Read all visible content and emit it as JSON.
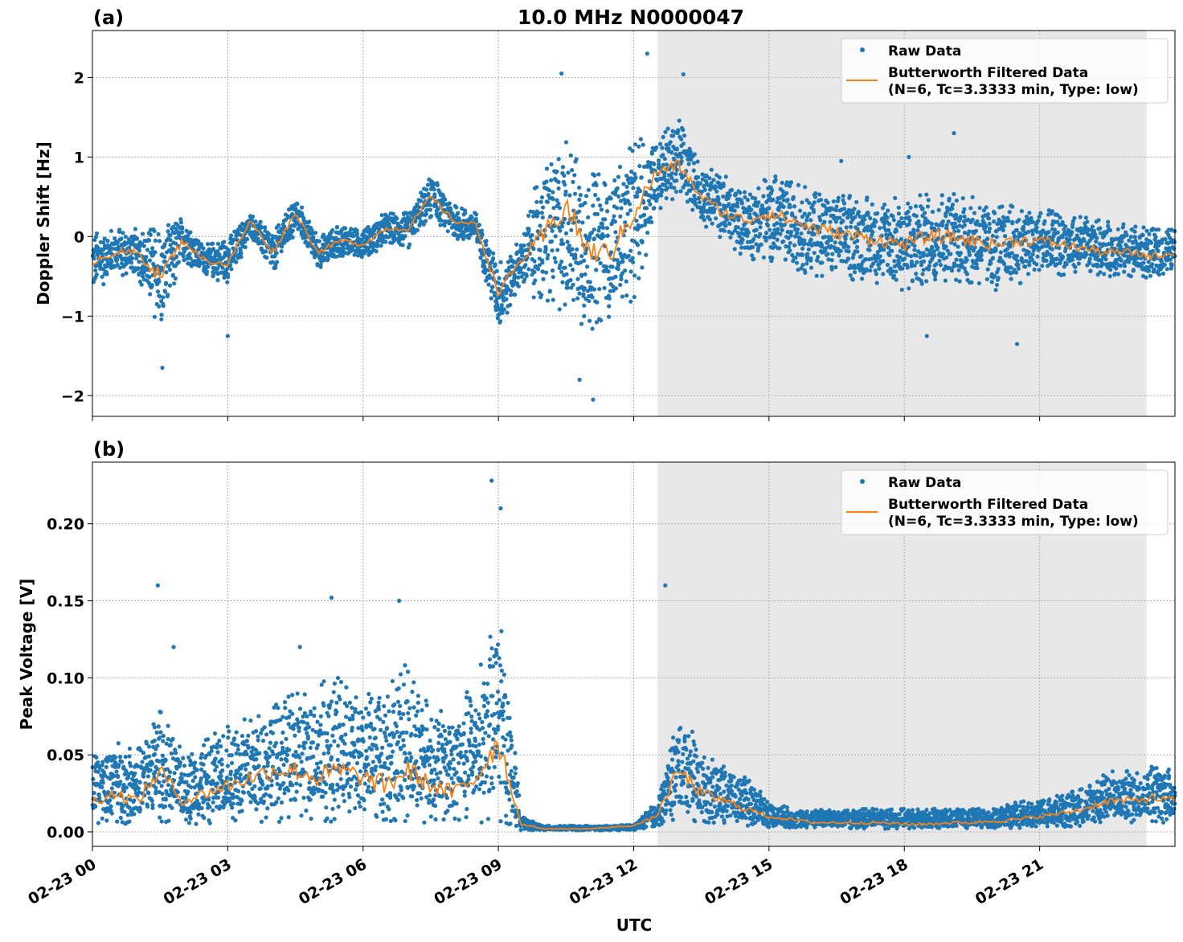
{
  "title": "10.0 MHz N0000047",
  "colors": {
    "raw": "#1f77b4",
    "filtered": "#ff7f0e",
    "shade": "#e8e8e8"
  },
  "chart_data": [
    {
      "type": "scatter+line",
      "panel_label": "(a)",
      "title": "10.0 MHz N0000047",
      "xlabel": "UTC",
      "ylabel": "Doppler Shift [Hz]",
      "xlim_hours": [
        0,
        24
      ],
      "ylim": [
        -2.26,
        2.59
      ],
      "yticks": [
        2,
        1,
        0,
        -1,
        -2
      ],
      "ytick_labels": [
        "2",
        "1",
        "0",
        "−1",
        "−2"
      ],
      "xtick_labels": [
        "02-23 00",
        "02-23 03",
        "02-23 06",
        "02-23 09",
        "02-23 12",
        "02-23 15",
        "02-23 18",
        "02-23 21"
      ],
      "grid": true,
      "legend_placement": "top-right",
      "legend": [
        "Raw Data",
        "Butterworth Filtered Data",
        "(N=6, Tc=3.3333 min, Type: low)"
      ],
      "shaded_span_hours": [
        12.53,
        23.37
      ],
      "hours": [
        0,
        0.5,
        1,
        1.5,
        2,
        2.5,
        3,
        3.5,
        4,
        4.5,
        5,
        5.5,
        6,
        6.5,
        7,
        7.5,
        8,
        8.5,
        9,
        9.5,
        10,
        10.5,
        11,
        11.5,
        12,
        12.5,
        13,
        13.5,
        14,
        14.5,
        15,
        15.5,
        16,
        16.5,
        17,
        17.5,
        18,
        18.5,
        19,
        19.5,
        20,
        20.5,
        21,
        21.5,
        22,
        22.5,
        23,
        23.5,
        24
      ],
      "filtered": [
        -0.3,
        -0.2,
        -0.2,
        -0.5,
        -0.05,
        -0.3,
        -0.35,
        0.2,
        -0.2,
        0.3,
        -0.2,
        -0.05,
        -0.1,
        0.1,
        0.1,
        0.5,
        0.2,
        0.15,
        -0.7,
        -0.3,
        0.0,
        0.4,
        -0.2,
        -0.2,
        0.3,
        0.8,
        0.9,
        0.5,
        0.3,
        0.2,
        0.3,
        0.2,
        0.1,
        0.05,
        0.0,
        -0.05,
        -0.1,
        0.0,
        0.0,
        -0.05,
        -0.1,
        -0.05,
        -0.05,
        -0.1,
        -0.15,
        -0.2,
        -0.2,
        -0.25,
        -0.2
      ],
      "raw_lower": [
        -0.7,
        -0.5,
        -0.5,
        -1.2,
        -0.3,
        -0.5,
        -0.6,
        0.0,
        -0.45,
        0.05,
        -0.4,
        -0.25,
        -0.3,
        -0.1,
        -0.15,
        0.25,
        -0.05,
        -0.1,
        -1.2,
        -0.6,
        -0.9,
        -1.0,
        -1.2,
        -1.0,
        -0.8,
        0.3,
        0.5,
        0.15,
        -0.1,
        -0.3,
        -0.3,
        -0.4,
        -0.5,
        -0.5,
        -0.6,
        -0.6,
        -0.7,
        -0.6,
        -0.6,
        -0.6,
        -0.7,
        -0.6,
        -0.5,
        -0.5,
        -0.5,
        -0.5,
        -0.5,
        -0.55,
        -0.45
      ],
      "raw_upper": [
        0.05,
        0.1,
        0.1,
        0.15,
        0.25,
        -0.1,
        0.0,
        0.3,
        0.05,
        0.5,
        0.0,
        0.15,
        0.15,
        0.3,
        0.3,
        0.8,
        0.4,
        0.3,
        -0.3,
        0.0,
        1.0,
        1.3,
        0.8,
        0.8,
        1.2,
        1.3,
        1.5,
        0.9,
        0.8,
        0.6,
        0.8,
        0.7,
        0.6,
        0.55,
        0.5,
        0.5,
        0.5,
        0.55,
        0.6,
        0.5,
        0.4,
        0.4,
        0.35,
        0.3,
        0.25,
        0.2,
        0.15,
        0.1,
        0.1
      ],
      "outliers": [
        [
          12.3,
          2.3
        ],
        [
          10.4,
          2.05
        ],
        [
          13.1,
          2.04
        ],
        [
          11.1,
          -2.05
        ],
        [
          1.55,
          -1.65
        ],
        [
          10.8,
          -1.8
        ],
        [
          16.6,
          0.95
        ],
        [
          18.5,
          -1.25
        ],
        [
          20.5,
          -1.35
        ],
        [
          19.1,
          1.3
        ],
        [
          18.1,
          1.0
        ],
        [
          3.0,
          -1.25
        ]
      ]
    },
    {
      "type": "scatter+line",
      "panel_label": "(b)",
      "xlabel": "UTC",
      "ylabel": "Peak Voltage [V]",
      "xlim_hours": [
        0,
        24
      ],
      "ylim": [
        -0.0094,
        0.24
      ],
      "yticks": [
        0.2,
        0.15,
        0.1,
        0.05,
        0.0
      ],
      "ytick_labels": [
        "0.20",
        "0.15",
        "0.10",
        "0.05",
        "0.00"
      ],
      "xtick_labels": [
        "02-23 00",
        "02-23 03",
        "02-23 06",
        "02-23 09",
        "02-23 12",
        "02-23 15",
        "02-23 18",
        "02-23 21"
      ],
      "grid": true,
      "legend_placement": "top-right",
      "legend": [
        "Raw Data",
        "Butterworth Filtered Data",
        "(N=6, Tc=3.3333 min, Type: low)"
      ],
      "shaded_span_hours": [
        12.53,
        23.37
      ],
      "hours": [
        0,
        0.5,
        1,
        1.5,
        2,
        2.5,
        3,
        3.5,
        4,
        4.5,
        5,
        5.5,
        6,
        6.5,
        7,
        7.5,
        8,
        8.5,
        9,
        9.5,
        10,
        10.5,
        11,
        11.5,
        12,
        12.5,
        13,
        13.5,
        14,
        14.5,
        15,
        15.5,
        16,
        16.5,
        17,
        17.5,
        18,
        18.5,
        19,
        19.5,
        20,
        20.5,
        21,
        21.5,
        22,
        22.5,
        23,
        23.5,
        24
      ],
      "filtered": [
        0.02,
        0.025,
        0.02,
        0.04,
        0.02,
        0.025,
        0.03,
        0.035,
        0.04,
        0.04,
        0.035,
        0.04,
        0.035,
        0.03,
        0.04,
        0.03,
        0.025,
        0.035,
        0.06,
        0.005,
        0.002,
        0.002,
        0.002,
        0.003,
        0.004,
        0.01,
        0.04,
        0.025,
        0.02,
        0.015,
        0.01,
        0.008,
        0.006,
        0.006,
        0.006,
        0.006,
        0.005,
        0.005,
        0.006,
        0.006,
        0.007,
        0.008,
        0.01,
        0.012,
        0.015,
        0.02,
        0.02,
        0.022,
        0.02
      ],
      "raw_lower": [
        0.005,
        0.005,
        0.005,
        0.005,
        0.005,
        0.005,
        0.006,
        0.006,
        0.006,
        0.006,
        0.006,
        0.006,
        0.006,
        0.006,
        0.006,
        0.006,
        0.005,
        0.006,
        0.006,
        0.001,
        0.001,
        0.001,
        0.001,
        0.001,
        0.001,
        0.003,
        0.008,
        0.006,
        0.005,
        0.004,
        0.003,
        0.002,
        0.002,
        0.002,
        0.002,
        0.002,
        0.002,
        0.002,
        0.002,
        0.002,
        0.002,
        0.002,
        0.003,
        0.003,
        0.004,
        0.005,
        0.005,
        0.006,
        0.006
      ],
      "raw_upper": [
        0.05,
        0.06,
        0.055,
        0.08,
        0.05,
        0.06,
        0.07,
        0.075,
        0.085,
        0.09,
        0.1,
        0.1,
        0.09,
        0.1,
        0.11,
        0.08,
        0.08,
        0.1,
        0.15,
        0.01,
        0.004,
        0.004,
        0.004,
        0.004,
        0.005,
        0.02,
        0.08,
        0.05,
        0.045,
        0.035,
        0.02,
        0.015,
        0.015,
        0.015,
        0.015,
        0.015,
        0.015,
        0.015,
        0.015,
        0.015,
        0.015,
        0.02,
        0.02,
        0.025,
        0.03,
        0.04,
        0.04,
        0.045,
        0.04
      ],
      "outliers": [
        [
          1.45,
          0.16
        ],
        [
          1.8,
          0.12
        ],
        [
          8.85,
          0.228
        ],
        [
          9.05,
          0.21
        ],
        [
          12.7,
          0.16
        ],
        [
          13.3,
          0.065
        ],
        [
          5.3,
          0.152
        ],
        [
          6.8,
          0.15
        ],
        [
          4.6,
          0.12
        ]
      ]
    }
  ]
}
